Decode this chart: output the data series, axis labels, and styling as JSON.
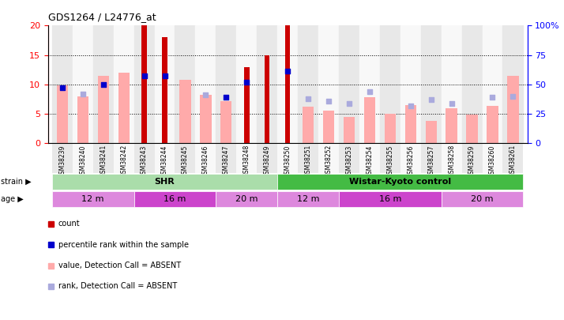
{
  "title": "GDS1264 / L24776_at",
  "samples": [
    "GSM38239",
    "GSM38240",
    "GSM38241",
    "GSM38242",
    "GSM38243",
    "GSM38244",
    "GSM38245",
    "GSM38246",
    "GSM38247",
    "GSM38248",
    "GSM38249",
    "GSM38250",
    "GSM38251",
    "GSM38252",
    "GSM38253",
    "GSM38254",
    "GSM38255",
    "GSM38256",
    "GSM38257",
    "GSM38258",
    "GSM38259",
    "GSM38260",
    "GSM38261"
  ],
  "count": [
    null,
    null,
    null,
    null,
    20,
    18,
    null,
    null,
    null,
    13,
    15,
    20,
    null,
    null,
    null,
    null,
    null,
    null,
    null,
    null,
    null,
    null,
    null
  ],
  "percentile_rank": [
    47,
    null,
    50,
    null,
    57,
    57,
    null,
    null,
    39,
    52,
    null,
    61,
    null,
    null,
    null,
    null,
    null,
    null,
    null,
    null,
    null,
    null,
    null
  ],
  "value_absent": [
    9.8,
    8.0,
    11.5,
    12.0,
    null,
    null,
    10.8,
    8.3,
    7.2,
    null,
    null,
    null,
    6.2,
    5.5,
    4.5,
    7.8,
    5.0,
    6.5,
    3.8,
    6.0,
    4.9,
    6.3,
    11.5
  ],
  "rank_absent": [
    null,
    42,
    null,
    null,
    null,
    null,
    null,
    41,
    null,
    null,
    null,
    null,
    38,
    36,
    34,
    44,
    null,
    32,
    37,
    34,
    null,
    39,
    40
  ],
  "ylim_left": [
    0,
    20
  ],
  "ylim_right": [
    0,
    100
  ],
  "yticks_left": [
    0,
    5,
    10,
    15,
    20
  ],
  "yticks_right": [
    0,
    25,
    50,
    75,
    100
  ],
  "ytick_right_labels": [
    "0",
    "25",
    "50",
    "75",
    "100%"
  ],
  "strain_groups": [
    {
      "label": "SHR",
      "start": 0,
      "end": 11,
      "color": "#aaddaa"
    },
    {
      "label": "Wistar-Kyoto control",
      "start": 11,
      "end": 23,
      "color": "#44bb44"
    }
  ],
  "age_groups": [
    {
      "label": "12 m",
      "start": 0,
      "end": 4,
      "color": "#dd88dd"
    },
    {
      "label": "16 m",
      "start": 4,
      "end": 8,
      "color": "#cc44cc"
    },
    {
      "label": "20 m",
      "start": 8,
      "end": 11,
      "color": "#dd88dd"
    },
    {
      "label": "12 m",
      "start": 11,
      "end": 14,
      "color": "#dd88dd"
    },
    {
      "label": "16 m",
      "start": 14,
      "end": 19,
      "color": "#cc44cc"
    },
    {
      "label": "20 m",
      "start": 19,
      "end": 23,
      "color": "#dd88dd"
    }
  ],
  "color_count": "#cc0000",
  "color_percentile": "#0000cc",
  "color_value_absent": "#ffaaaa",
  "color_rank_absent": "#aaaadd",
  "plot_bg": "#ffffff",
  "col_bg_even": "#e8e8e8",
  "col_bg_odd": "#f8f8f8"
}
